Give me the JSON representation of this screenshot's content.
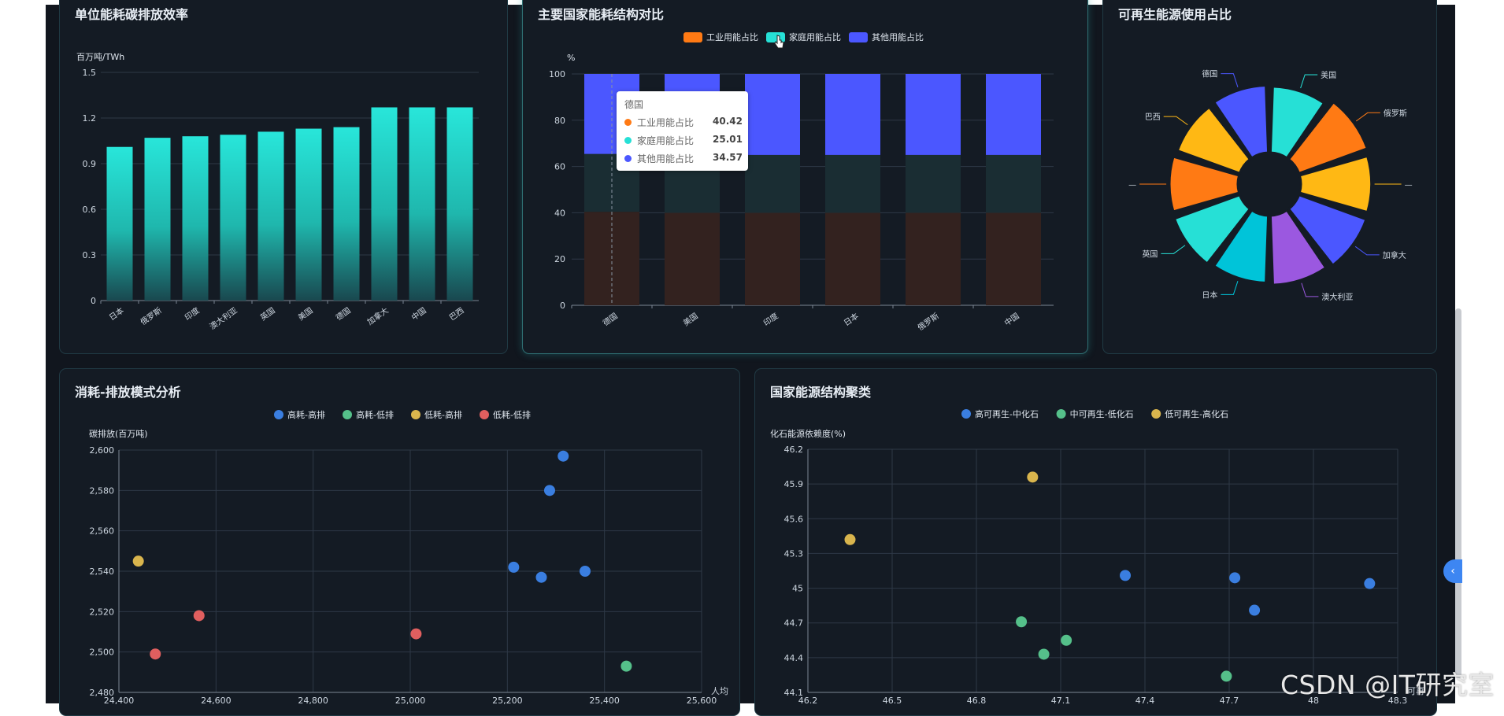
{
  "panels": {
    "p1": {
      "title": "单位能耗碳排放效率"
    },
    "p2": {
      "title": "主要国家能耗结构对比"
    },
    "p3": {
      "title": "可再生能源使用占比"
    },
    "p4": {
      "title": "消耗-排放模式分析"
    },
    "p5": {
      "title": "国家能源结构聚类"
    }
  },
  "colors": {
    "teal": "#26e0d6",
    "orange": "#ff7a14",
    "blue": "#4b57ff",
    "yellow": "#ffb814",
    "cyan": "#00c4d9",
    "purple": "#9b58e0",
    "scatter_blue": "#3a7ee0",
    "scatter_green": "#55c08a",
    "scatter_gold": "#d9b54d",
    "scatter_red": "#e05f5f"
  },
  "tooltip": {
    "title": "德国",
    "rows": [
      {
        "name": "工业用能占比",
        "value": "40.42",
        "color": "#ff7a14"
      },
      {
        "name": "家庭用能占比",
        "value": "25.01",
        "color": "#26e0d6"
      },
      {
        "name": "其他用能占比",
        "value": "34.57",
        "color": "#4b57ff"
      }
    ]
  },
  "watermark": "CSDN @IT研究室",
  "side_toggle": "‹",
  "chart_data": [
    {
      "type": "bar",
      "title": "单位能耗碳排放效率",
      "ylabel": "百万吨/TWh",
      "categories": [
        "日本",
        "俄罗斯",
        "印度",
        "澳大利亚",
        "英国",
        "美国",
        "德国",
        "加拿大",
        "中国",
        "巴西"
      ],
      "values": [
        1.01,
        1.07,
        1.08,
        1.09,
        1.11,
        1.13,
        1.14,
        1.27,
        1.27,
        1.27
      ],
      "ylim": [
        0,
        1.5
      ],
      "yticks": [
        "0",
        "0.3",
        "0.6",
        "0.9",
        "1.2",
        "1.5"
      ]
    },
    {
      "type": "bar",
      "stacked": true,
      "title": "主要国家能耗结构对比",
      "ylabel": "%",
      "categories": [
        "德国",
        "美国",
        "印度",
        "日本",
        "俄罗斯",
        "中国"
      ],
      "series": [
        {
          "name": "工业用能占比",
          "values": [
            40.42,
            40,
            40,
            40,
            40,
            40
          ]
        },
        {
          "name": "家庭用能占比",
          "values": [
            25.01,
            25,
            25,
            25,
            25,
            25
          ]
        },
        {
          "name": "其他用能占比",
          "values": [
            34.57,
            35,
            35,
            35,
            35,
            35
          ]
        }
      ],
      "ylim": [
        0,
        100
      ],
      "yticks": [
        "0",
        "20",
        "40",
        "60",
        "80",
        "100"
      ],
      "legend": [
        "工业用能占比",
        "家庭用能占比",
        "其他用能占比"
      ]
    },
    {
      "type": "pie",
      "subtype": "rose",
      "title": "可再生能源使用占比",
      "labels": [
        "美国",
        "俄罗斯",
        "—",
        "加拿大",
        "澳大利亚",
        "日本",
        "英国",
        "—",
        "巴西",
        "德国"
      ],
      "values": [
        10,
        10,
        10,
        10,
        10,
        10,
        10,
        10,
        10,
        10
      ],
      "radius_scale": [
        0.92,
        0.98,
        0.96,
        0.97,
        0.95,
        0.93,
        0.95,
        0.94,
        0.92,
        0.93
      ],
      "colors": [
        "#26e0d6",
        "#ff7a14",
        "#ffb814",
        "#4b57ff",
        "#9b58e0",
        "#00c4d9",
        "#26e0d6",
        "#ff7a14",
        "#ffb814",
        "#4b57ff"
      ]
    },
    {
      "type": "scatter",
      "title": "消耗-排放模式分析",
      "xlabel": "人均",
      "ylabel": "碳排放(百万吨)",
      "xlim": [
        24400,
        25600
      ],
      "ylim": [
        2480,
        2600
      ],
      "xticks": [
        "24,400",
        "24,600",
        "24,800",
        "25,000",
        "25,200",
        "25,400",
        "25,600"
      ],
      "yticks": [
        "2,480",
        "2,500",
        "2,520",
        "2,540",
        "2,560",
        "2,580",
        "2,600"
      ],
      "legend": [
        "高耗-高排",
        "高耗-低排",
        "低耗-高排",
        "低耗-低排"
      ],
      "series": [
        {
          "name": "高耗-高排",
          "color": "#3a7ee0",
          "points": [
            [
              25315,
              2597
            ],
            [
              25287,
              2580
            ],
            [
              25213,
              2542
            ],
            [
              25270,
              2537
            ],
            [
              25360,
              2540
            ]
          ]
        },
        {
          "name": "高耗-低排",
          "color": "#55c08a",
          "points": [
            [
              25445,
              2493
            ]
          ]
        },
        {
          "name": "低耗-高排",
          "color": "#d9b54d",
          "points": [
            [
              24440,
              2545
            ]
          ]
        },
        {
          "name": "低耗-低排",
          "color": "#e05f5f",
          "points": [
            [
              24565,
              2518
            ],
            [
              24475,
              2499
            ],
            [
              25012,
              2509
            ]
          ]
        }
      ]
    },
    {
      "type": "scatter",
      "title": "国家能源结构聚类",
      "xlabel": "可再",
      "ylabel": "化石能源依赖度(%)",
      "xlim": [
        46.2,
        48.3
      ],
      "ylim": [
        44.1,
        46.2
      ],
      "xticks": [
        "46.2",
        "46.5",
        "46.8",
        "47.1",
        "47.4",
        "47.7",
        "48",
        "48.3"
      ],
      "yticks": [
        "44.1",
        "44.4",
        "44.7",
        "45",
        "45.3",
        "45.6",
        "45.9",
        "46.2"
      ],
      "legend": [
        "高可再生-中化石",
        "中可再生-低化石",
        "低可再生-高化石"
      ],
      "series": [
        {
          "name": "高可再生-中化石",
          "color": "#3a7ee0",
          "points": [
            [
              47.33,
              45.11
            ],
            [
              47.72,
              45.09
            ],
            [
              47.79,
              44.81
            ],
            [
              48.2,
              45.04
            ]
          ]
        },
        {
          "name": "中可再生-低化石",
          "color": "#55c08a",
          "points": [
            [
              46.96,
              44.71
            ],
            [
              47.04,
              44.43
            ],
            [
              47.12,
              44.55
            ],
            [
              47.69,
              44.24
            ]
          ]
        },
        {
          "name": "低可再生-高化石",
          "color": "#d9b54d",
          "points": [
            [
              46.35,
              45.42
            ],
            [
              47.0,
              45.96
            ]
          ]
        }
      ]
    }
  ]
}
